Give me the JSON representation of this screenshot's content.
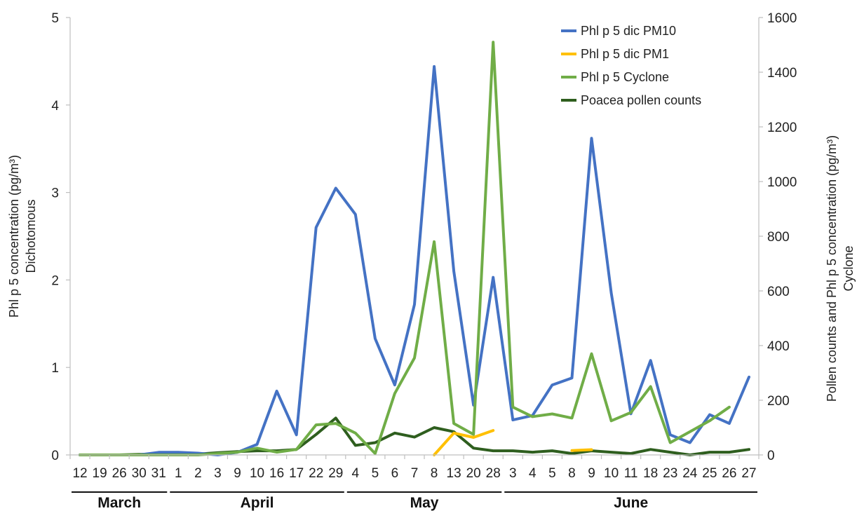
{
  "chart_data": {
    "type": "line",
    "categories": [
      "12",
      "19",
      "26",
      "30",
      "31",
      "1",
      "2",
      "3",
      "9",
      "10",
      "16",
      "17",
      "22",
      "29",
      "4",
      "5",
      "6",
      "7",
      "8",
      "13",
      "20",
      "28",
      "3",
      "4",
      "5",
      "8",
      "9",
      "10",
      "11",
      "18",
      "23",
      "24",
      "25",
      "26",
      "27"
    ],
    "months": [
      {
        "label": "March",
        "from": 0,
        "to": 4
      },
      {
        "label": "April",
        "from": 5,
        "to": 13
      },
      {
        "label": "May",
        "from": 14,
        "to": 21
      },
      {
        "label": "June",
        "from": 22,
        "to": 34
      }
    ],
    "y_left": {
      "label_line1": "Phl p 5 concentration  (pg/m³)",
      "label_line2": "Dichotomous",
      "lim": [
        0,
        5
      ],
      "ticks": [
        0,
        1,
        2,
        3,
        4,
        5
      ]
    },
    "y_right": {
      "label_line1": "Pollen counts and Phl p 5 concentration (pg/m³)",
      "label_line2": "Cyclone",
      "lim": [
        0,
        1600
      ],
      "ticks": [
        0,
        200,
        400,
        600,
        800,
        1000,
        1200,
        1400,
        1600
      ]
    },
    "legend_position": "top-right",
    "grid": false,
    "series": [
      {
        "name": "Phl p 5 dic PM10",
        "axis": "left",
        "color": "#4472C4",
        "values": [
          0,
          0,
          0,
          0,
          0.03,
          0.03,
          0.02,
          0,
          0.03,
          0.12,
          0.73,
          0.23,
          2.6,
          3.05,
          2.75,
          1.33,
          0.8,
          1.72,
          4.44,
          2.1,
          0.57,
          2.03,
          0.4,
          0.45,
          0.8,
          0.88,
          3.62,
          1.85,
          0.47,
          1.08,
          0.23,
          0.14,
          0.46,
          0.36,
          0.89
        ]
      },
      {
        "name": "Phl p 5 dic PM1",
        "axis": "left",
        "color": "#FFC000",
        "values": [
          null,
          null,
          null,
          null,
          null,
          null,
          null,
          null,
          null,
          null,
          null,
          null,
          null,
          null,
          null,
          null,
          null,
          null,
          0,
          0.25,
          0.2,
          0.28,
          null,
          null,
          null,
          0.05,
          0.06,
          null,
          null,
          null,
          null,
          null,
          null,
          null,
          null
        ]
      },
      {
        "name": "Phl p 5 Cyclone",
        "axis": "right",
        "color": "#70AD47",
        "values": [
          0,
          0,
          0,
          0,
          0,
          0,
          0,
          5,
          10,
          25,
          10,
          20,
          110,
          115,
          80,
          5,
          225,
          355,
          780,
          115,
          75,
          1510,
          175,
          140,
          150,
          135,
          370,
          125,
          155,
          250,
          45,
          85,
          125,
          175,
          null
        ]
      },
      {
        "name": "Poacea pollen counts",
        "axis": "right",
        "color": "#2E5E1E",
        "values": [
          0,
          0,
          0,
          2,
          3,
          5,
          3,
          8,
          12,
          15,
          15,
          20,
          75,
          135,
          35,
          45,
          80,
          65,
          100,
          85,
          25,
          15,
          15,
          10,
          15,
          5,
          15,
          10,
          5,
          20,
          10,
          0,
          10,
          10,
          20
        ]
      }
    ]
  }
}
